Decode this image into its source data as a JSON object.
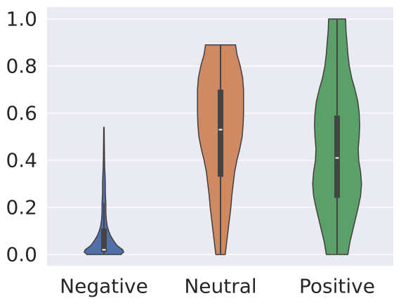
{
  "chart_data": {
    "type": "violin",
    "title": "",
    "xlabel": "",
    "ylabel": "",
    "ylim": [
      -0.05,
      1.05
    ],
    "yticks": [
      0.0,
      0.2,
      0.4,
      0.6,
      0.8,
      1.0
    ],
    "ytick_labels": [
      "0.0",
      "0.2",
      "0.4",
      "0.6",
      "0.8",
      "1.0"
    ],
    "grid": true,
    "background": "#eaeaf2",
    "categories": [
      "Negative",
      "Neutral",
      "Positive"
    ],
    "colors": [
      "#5470a9",
      "#cf8963",
      "#5ba069"
    ],
    "series": [
      {
        "min": 0.0,
        "q1": 0.01,
        "median": 0.02,
        "q3": 0.11,
        "max": 0.54,
        "whisker_low": 0.0,
        "whisker_high": 0.22,
        "density": [
          [
            0.0,
            0.36
          ],
          [
            0.01,
            0.42
          ],
          [
            0.02,
            0.4
          ],
          [
            0.03,
            0.33
          ],
          [
            0.04,
            0.27
          ],
          [
            0.06,
            0.2
          ],
          [
            0.08,
            0.14
          ],
          [
            0.1,
            0.1
          ],
          [
            0.12,
            0.07
          ],
          [
            0.15,
            0.05
          ],
          [
            0.18,
            0.04
          ],
          [
            0.22,
            0.04
          ],
          [
            0.26,
            0.03
          ],
          [
            0.3,
            0.03
          ],
          [
            0.33,
            0.025
          ],
          [
            0.36,
            0.018
          ],
          [
            0.4,
            0.012
          ],
          [
            0.44,
            0.01
          ],
          [
            0.48,
            0.008
          ],
          [
            0.52,
            0.006
          ],
          [
            0.54,
            0.005
          ]
        ]
      },
      {
        "min": 0.0,
        "q1": 0.33,
        "median": 0.53,
        "q3": 0.7,
        "max": 0.89,
        "whisker_low": 0.0,
        "whisker_high": 0.89,
        "density": [
          [
            0.0,
            0.1
          ],
          [
            0.05,
            0.13
          ],
          [
            0.1,
            0.16
          ],
          [
            0.15,
            0.19
          ],
          [
            0.2,
            0.22
          ],
          [
            0.25,
            0.24
          ],
          [
            0.3,
            0.27
          ],
          [
            0.35,
            0.3
          ],
          [
            0.4,
            0.35
          ],
          [
            0.45,
            0.41
          ],
          [
            0.5,
            0.46
          ],
          [
            0.55,
            0.48
          ],
          [
            0.6,
            0.49
          ],
          [
            0.65,
            0.49
          ],
          [
            0.7,
            0.49
          ],
          [
            0.75,
            0.47
          ],
          [
            0.8,
            0.42
          ],
          [
            0.85,
            0.35
          ],
          [
            0.89,
            0.32
          ]
        ]
      },
      {
        "min": 0.0,
        "q1": 0.24,
        "median": 0.41,
        "q3": 0.59,
        "max": 1.0,
        "whisker_low": 0.0,
        "whisker_high": 1.0,
        "density": [
          [
            0.0,
            0.23
          ],
          [
            0.05,
            0.27
          ],
          [
            0.1,
            0.33
          ],
          [
            0.15,
            0.39
          ],
          [
            0.2,
            0.45
          ],
          [
            0.25,
            0.5
          ],
          [
            0.3,
            0.52
          ],
          [
            0.35,
            0.5
          ],
          [
            0.4,
            0.46
          ],
          [
            0.45,
            0.45
          ],
          [
            0.5,
            0.47
          ],
          [
            0.55,
            0.48
          ],
          [
            0.6,
            0.47
          ],
          [
            0.65,
            0.44
          ],
          [
            0.7,
            0.38
          ],
          [
            0.75,
            0.31
          ],
          [
            0.8,
            0.26
          ],
          [
            0.85,
            0.23
          ],
          [
            0.9,
            0.21
          ],
          [
            0.95,
            0.19
          ],
          [
            1.0,
            0.18
          ]
        ]
      }
    ]
  }
}
